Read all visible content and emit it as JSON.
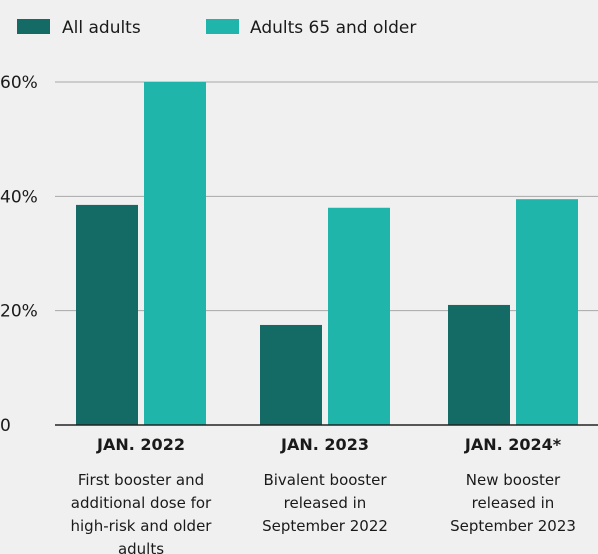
{
  "chart_data": {
    "type": "bar",
    "categories": [
      "JAN. 2022",
      "JAN. 2023",
      "JAN. 2024*"
    ],
    "descriptions": [
      [
        "First booster and",
        "additional dose for",
        "high-risk and older",
        "adults"
      ],
      [
        "Bivalent booster",
        "released in",
        "September 2022"
      ],
      [
        "New booster",
        "released in",
        "September 2023"
      ]
    ],
    "series": [
      {
        "name": "All adults",
        "values": [
          38.5,
          17.5,
          21
        ],
        "color": "#146b66"
      },
      {
        "name": "Adults 65 and older",
        "values": [
          60,
          38,
          39.5
        ],
        "color": "#1fb5aa"
      }
    ],
    "ylim": [
      0,
      60
    ],
    "yticks": [
      {
        "value": 0,
        "label": "0"
      },
      {
        "value": 20,
        "label": "20%"
      },
      {
        "value": 40,
        "label": "40%"
      },
      {
        "value": 60,
        "label": "60%"
      }
    ],
    "grid": true,
    "legend": "top-left",
    "gridline_color": "#a8a8a8"
  }
}
